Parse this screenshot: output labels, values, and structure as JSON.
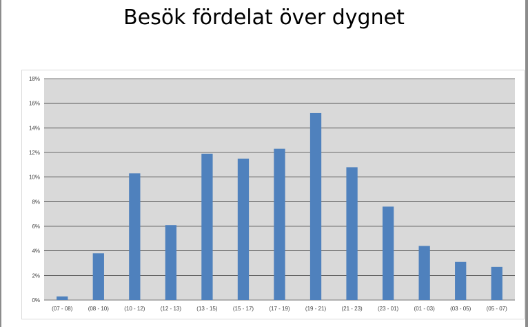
{
  "title": "Besök fördelat över dygnet",
  "chart_data": {
    "type": "bar",
    "title": "Besök fördelat över dygnet",
    "xlabel": "",
    "ylabel": "",
    "categories": [
      "(07 - 08)",
      "(08 - 10)",
      "(10 - 12)",
      "(12 - 13)",
      "(13 - 15)",
      "(15 - 17)",
      "(17 - 19)",
      "(19 - 21)",
      "(21 - 23)",
      "(23 - 01)",
      "(01 - 03)",
      "(03 - 05)",
      "(05 - 07)"
    ],
    "values": [
      0.3,
      3.8,
      10.3,
      6.1,
      11.9,
      11.5,
      12.3,
      15.2,
      10.8,
      7.6,
      4.4,
      3.1,
      2.7
    ],
    "ylim": [
      0,
      18
    ],
    "yticks": [
      0,
      2,
      4,
      6,
      8,
      10,
      12,
      14,
      16,
      18
    ],
    "ytick_labels": [
      "0%",
      "2%",
      "4%",
      "6%",
      "8%",
      "10%",
      "12%",
      "14%",
      "16%",
      "18%"
    ],
    "grid": true,
    "legend": false,
    "colors": {
      "bar": "#4f81bd",
      "plot_background": "#d9d9d9",
      "gridline": "#000000"
    }
  }
}
